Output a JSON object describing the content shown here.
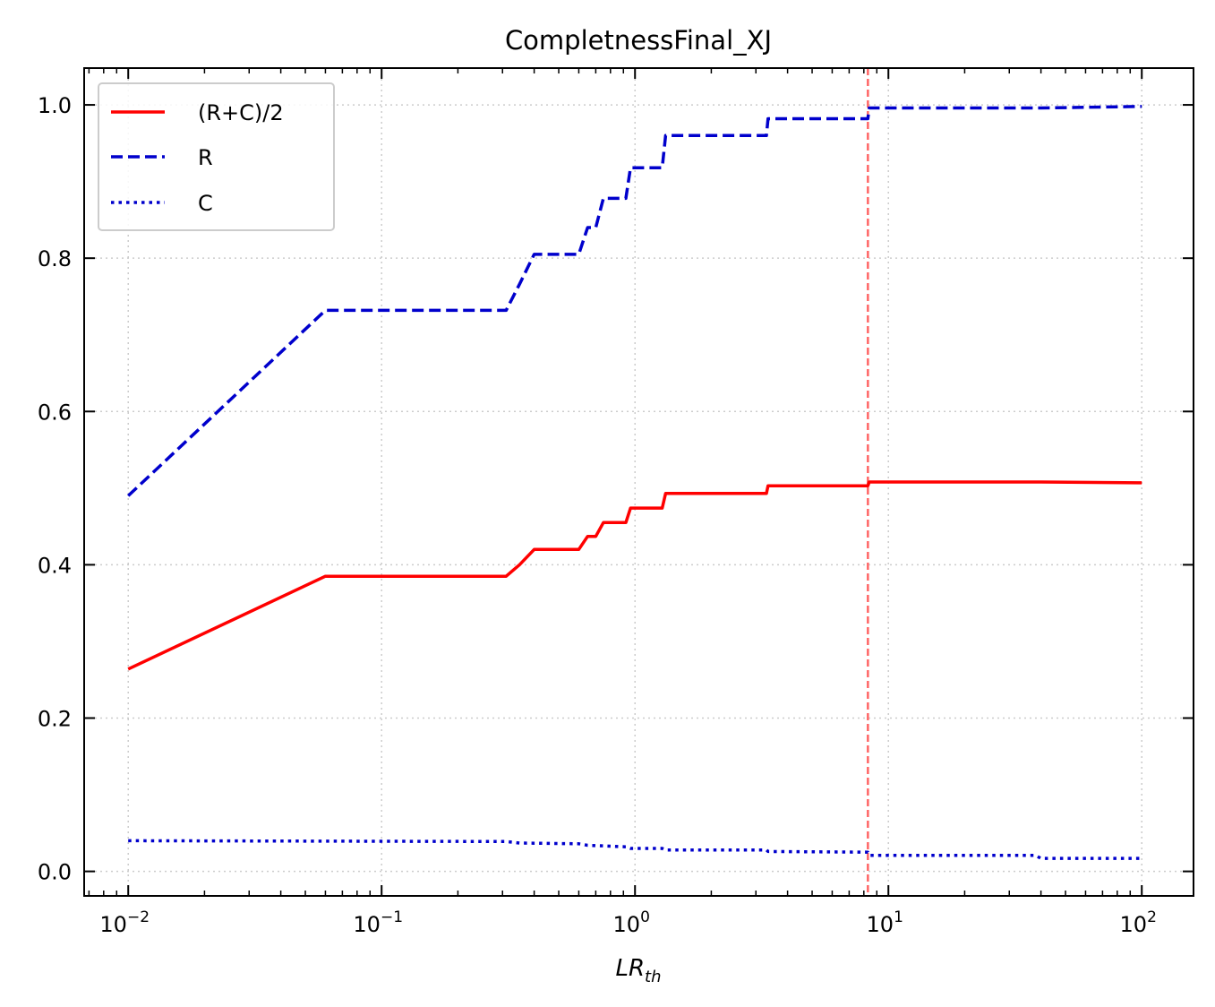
{
  "chart_data": {
    "type": "line",
    "title": "CompletnessFinal_XJ",
    "xlabel": {
      "main": "LR",
      "sub": "th"
    },
    "ylabel": "",
    "xscale": "log",
    "xlim": [
      0.0067,
      160
    ],
    "ylim": [
      -0.032,
      1.048
    ],
    "xticks": [
      {
        "base": "10",
        "exp": "−2",
        "value": 0.01
      },
      {
        "base": "10",
        "exp": "−1",
        "value": 0.1
      },
      {
        "base": "10",
        "exp": "0",
        "value": 1
      },
      {
        "base": "10",
        "exp": "1",
        "value": 10
      },
      {
        "base": "10",
        "exp": "2",
        "value": 100
      }
    ],
    "yticks": [
      {
        "label": "0.0",
        "value": 0.0
      },
      {
        "label": "0.2",
        "value": 0.2
      },
      {
        "label": "0.4",
        "value": 0.4
      },
      {
        "label": "0.6",
        "value": 0.6
      },
      {
        "label": "0.8",
        "value": 0.8
      },
      {
        "label": "1.0",
        "value": 1.0
      }
    ],
    "grid": true,
    "legend_position": "top-left",
    "vline": {
      "x": 8.3,
      "color": "#ff6666"
    },
    "series": [
      {
        "name": "(R+C)/2",
        "color": "#ff0000",
        "style": "solid",
        "x": [
          0.01,
          0.06,
          0.31,
          0.35,
          0.4,
          0.6,
          0.65,
          0.7,
          0.75,
          0.92,
          0.96,
          1.28,
          1.32,
          3.3,
          3.35,
          8.3,
          8.4,
          40,
          100
        ],
        "y": [
          0.264,
          0.385,
          0.385,
          0.4,
          0.42,
          0.42,
          0.437,
          0.437,
          0.455,
          0.455,
          0.474,
          0.474,
          0.493,
          0.493,
          0.503,
          0.503,
          0.508,
          0.508,
          0.507
        ]
      },
      {
        "name": "R",
        "color": "#0000cc",
        "style": "dashed",
        "x": [
          0.01,
          0.06,
          0.31,
          0.35,
          0.4,
          0.6,
          0.65,
          0.7,
          0.75,
          0.92,
          0.96,
          1.28,
          1.32,
          3.3,
          3.35,
          8.3,
          8.4,
          40,
          100
        ],
        "y": [
          0.49,
          0.732,
          0.732,
          0.766,
          0.805,
          0.805,
          0.84,
          0.84,
          0.878,
          0.878,
          0.918,
          0.918,
          0.96,
          0.96,
          0.982,
          0.982,
          0.996,
          0.996,
          0.998
        ]
      },
      {
        "name": "C",
        "color": "#0000cc",
        "style": "dotted",
        "x": [
          0.01,
          0.31,
          0.35,
          0.6,
          0.65,
          0.92,
          0.96,
          1.28,
          1.32,
          3.3,
          3.35,
          8.3,
          8.4,
          38,
          40,
          100
        ],
        "y": [
          0.04,
          0.039,
          0.037,
          0.036,
          0.034,
          0.032,
          0.03,
          0.03,
          0.028,
          0.028,
          0.026,
          0.025,
          0.021,
          0.021,
          0.017,
          0.017
        ]
      }
    ]
  }
}
